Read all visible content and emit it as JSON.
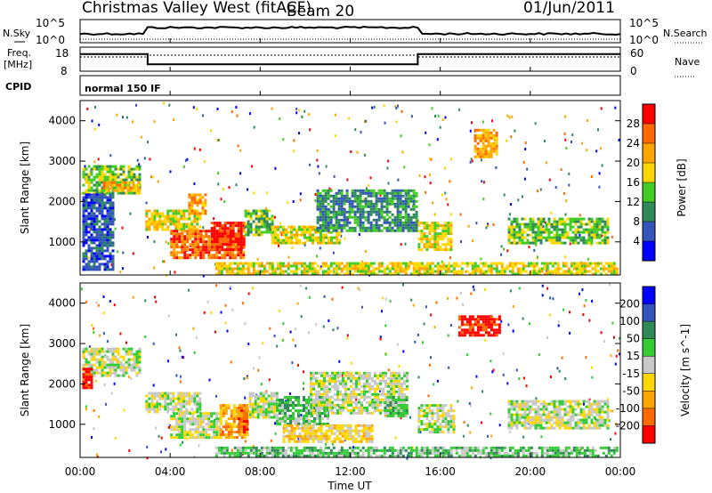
{
  "chart_data": {
    "type": "heatmap",
    "title": "Christmas Valley West (fitACF)",
    "beam": "Beam 20",
    "date": "01/Jun/2011",
    "xlabel": "Time UT",
    "x_ticks": [
      "00:00",
      "04:00",
      "08:00",
      "12:00",
      "16:00",
      "20:00",
      "00:00"
    ],
    "x_range_hours": [
      0,
      24
    ],
    "top_panels": {
      "nsky": {
        "label": "N.Sky",
        "ticks": [
          "10^5",
          "10^0"
        ],
        "right_label": "N.Search",
        "right_ticks": [
          "10^5",
          "10^0"
        ]
      },
      "freq": {
        "label": "Freq.",
        "unit": "[MHz]",
        "ticks": [
          18,
          8
        ],
        "right_label": "Nave",
        "right_ticks": [
          60,
          0
        ],
        "series": [
          {
            "segment_hours": [
              0,
              3
            ],
            "value_mhz": 16
          },
          {
            "segment_hours": [
              3,
              15
            ],
            "value_mhz": 10
          },
          {
            "segment_hours": [
              15,
              24
            ],
            "value_mhz": 16
          }
        ]
      },
      "cpid": {
        "label": "CPID",
        "value": "normal 150 IF"
      }
    },
    "panels": [
      {
        "name": "power",
        "ylabel": "Slant Range [km]",
        "y_ticks": [
          1000,
          2000,
          3000,
          4000
        ],
        "ylim": [
          180,
          4500
        ],
        "colorbar_label": "Power [dB]",
        "colorbar_ticks": [
          28,
          24,
          20,
          16,
          12,
          8,
          4
        ],
        "colorbar_colors": [
          "#ff0000",
          "#ff6a00",
          "#ffa500",
          "#ffd700",
          "#44cc22",
          "#2e8b57",
          "#3355bb",
          "#0000ff"
        ],
        "regions": [
          {
            "t": [
              0.1,
              2.6
            ],
            "r": [
              2200,
              2900
            ],
            "level": 3
          },
          {
            "t": [
              1.0,
              2.6
            ],
            "r": [
              2300,
              2500
            ],
            "level": 5
          },
          {
            "t": [
              2.9,
              5.3
            ],
            "r": [
              1300,
              1800
            ],
            "level": 4
          },
          {
            "t": [
              4.8,
              5.6
            ],
            "r": [
              1700,
              2200
            ],
            "level": 5
          },
          {
            "t": [
              4.0,
              7.3
            ],
            "r": [
              600,
              1300
            ],
            "level": 6
          },
          {
            "t": [
              5.8,
              7.3
            ],
            "r": [
              800,
              1500
            ],
            "level": 7
          },
          {
            "t": [
              7.3,
              8.5
            ],
            "r": [
              1200,
              1800
            ],
            "level": 3
          },
          {
            "t": [
              8.5,
              11.5
            ],
            "r": [
              1000,
              1400
            ],
            "level": 4
          },
          {
            "t": [
              10.5,
              14.9
            ],
            "r": [
              1300,
              2300
            ],
            "level": 2
          },
          {
            "t": [
              15.0,
              16.5
            ],
            "r": [
              800,
              1500
            ],
            "level": 4
          },
          {
            "t": [
              17.5,
              18.5
            ],
            "r": [
              3100,
              3800
            ],
            "level": 5
          },
          {
            "t": [
              19.0,
              23.5
            ],
            "r": [
              1000,
              1600
            ],
            "level": 3
          },
          {
            "t": [
              6.0,
              23.8
            ],
            "r": [
              200,
              500
            ],
            "level": 4
          },
          {
            "t": [
              0.1,
              1.5
            ],
            "r": [
              300,
              2200
            ],
            "level": 1
          }
        ]
      },
      {
        "name": "velocity",
        "ylabel": "Slant Range [km]",
        "y_ticks": [
          1000,
          2000,
          3000,
          4000
        ],
        "ylim": [
          180,
          4500
        ],
        "colorbar_label": "Velocity [m s^-1]",
        "colorbar_ticks": [
          200,
          100,
          50,
          15,
          -15,
          -50,
          -100,
          -200
        ],
        "colorbar_colors": [
          "#0000ff",
          "#3355bb",
          "#2e8b57",
          "#33cc33",
          "#c8c8c8",
          "#ffd700",
          "#ffa500",
          "#ff6a00",
          "#ff0000"
        ],
        "regions": [
          {
            "t": [
              0.1,
              2.6
            ],
            "r": [
              2200,
              2900
            ],
            "level": 4
          },
          {
            "t": [
              0.1,
              0.5
            ],
            "r": [
              1900,
              2400
            ],
            "level": 8
          },
          {
            "t": [
              2.9,
              5.3
            ],
            "r": [
              1300,
              1800
            ],
            "level": 4
          },
          {
            "t": [
              4.0,
              6.2
            ],
            "r": [
              700,
              1300
            ],
            "level": 4
          },
          {
            "t": [
              6.2,
              7.5
            ],
            "r": [
              700,
              1500
            ],
            "level": 6
          },
          {
            "t": [
              7.0,
              7.4
            ],
            "r": [
              800,
              1500
            ],
            "level": 7
          },
          {
            "t": [
              7.5,
              8.7
            ],
            "r": [
              1200,
              1800
            ],
            "level": 4
          },
          {
            "t": [
              8.7,
              11.0
            ],
            "r": [
              1000,
              1700
            ],
            "level": 3
          },
          {
            "t": [
              10.2,
              14.5
            ],
            "r": [
              1300,
              2300
            ],
            "level": 4
          },
          {
            "t": [
              13.5,
              14.5
            ],
            "r": [
              1200,
              1700
            ],
            "level": 3
          },
          {
            "t": [
              15.0,
              16.6
            ],
            "r": [
              800,
              1500
            ],
            "level": 4
          },
          {
            "t": [
              16.8,
              18.6
            ],
            "r": [
              3200,
              3700
            ],
            "level": 8
          },
          {
            "t": [
              19.0,
              23.5
            ],
            "r": [
              900,
              1600
            ],
            "level": 4
          },
          {
            "t": [
              6.0,
              23.8
            ],
            "r": [
              200,
              450
            ],
            "level": 3
          },
          {
            "t": [
              9.0,
              13.0
            ],
            "r": [
              600,
              1000
            ],
            "level": 5
          }
        ]
      }
    ]
  }
}
